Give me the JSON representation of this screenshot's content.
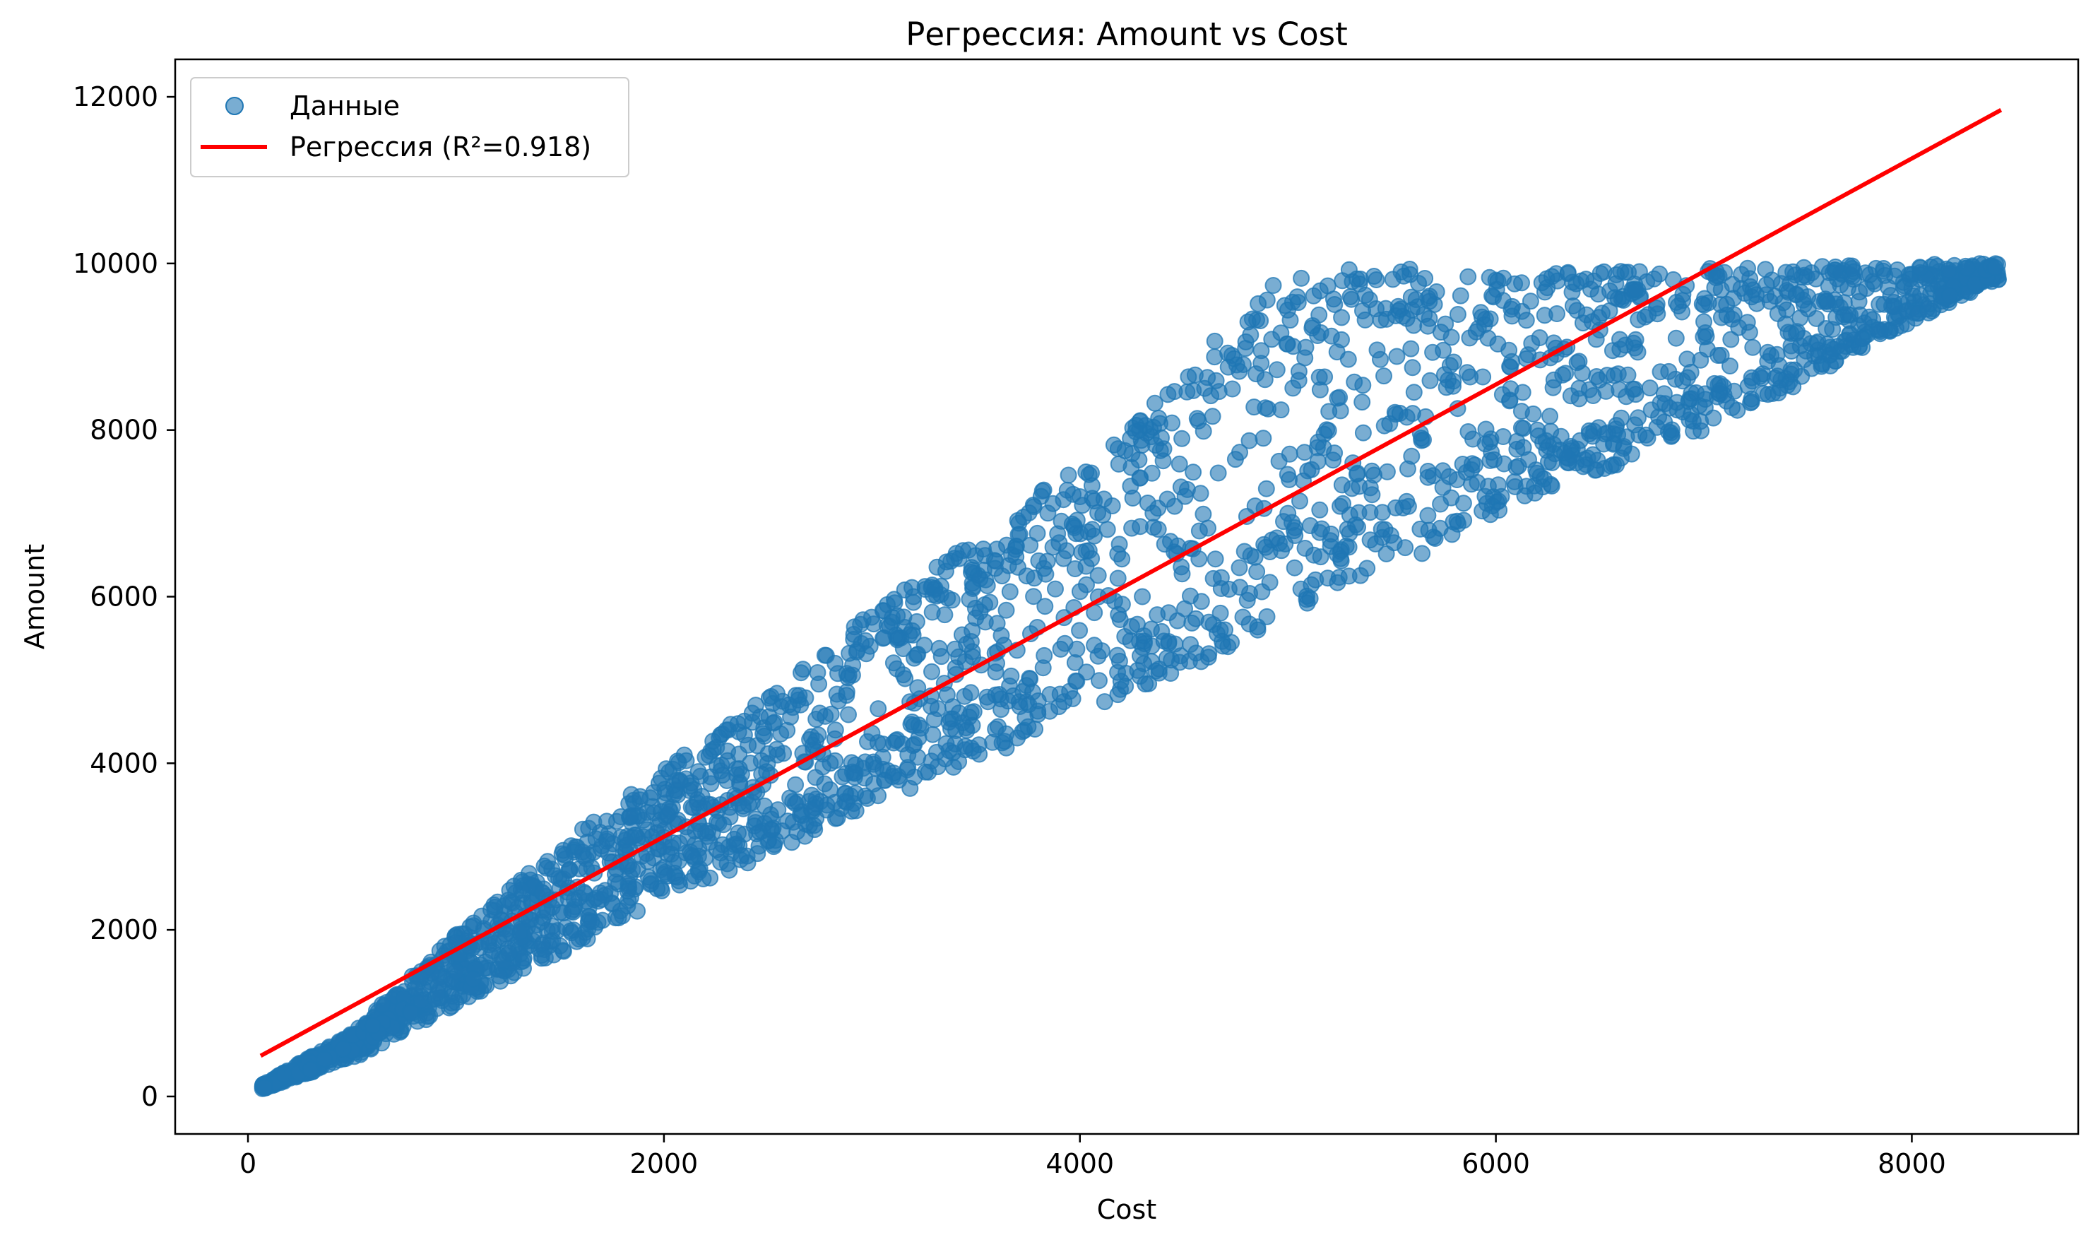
{
  "chart_data": {
    "type": "scatter",
    "title": "Регрессия: Amount vs Cost",
    "xlabel": "Cost",
    "ylabel": "Amount",
    "xlim": [
      -350,
      8800
    ],
    "ylim": [
      -450,
      12450
    ],
    "xticks": [
      0,
      2000,
      4000,
      6000,
      8000
    ],
    "yticks": [
      0,
      2000,
      4000,
      6000,
      8000,
      10000,
      12000
    ],
    "grid": false,
    "legend_position": "top-left",
    "colors": {
      "points": "#1f77b4",
      "regression": "#ff0000",
      "axes": "#000000",
      "legend_border": "#cccccc"
    },
    "series": [
      {
        "name": "Данные",
        "kind": "scatter",
        "point_opacity": 0.6,
        "envelope_upper": [
          [
            70,
            140
          ],
          [
            500,
            760
          ],
          [
            1000,
            1950
          ],
          [
            1500,
            3000
          ],
          [
            2000,
            3950
          ],
          [
            2500,
            4800
          ],
          [
            3000,
            5900
          ],
          [
            3500,
            6700
          ],
          [
            4000,
            7600
          ],
          [
            4500,
            8700
          ],
          [
            4900,
            9800
          ],
          [
            5200,
            9950
          ],
          [
            5800,
            9950
          ],
          [
            6500,
            9900
          ],
          [
            7000,
            9950
          ],
          [
            8400,
            10000
          ]
        ],
        "envelope_lower": [
          [
            70,
            90
          ],
          [
            500,
            450
          ],
          [
            1000,
            1100
          ],
          [
            1500,
            1700
          ],
          [
            2000,
            2400
          ],
          [
            2500,
            2900
          ],
          [
            3000,
            3500
          ],
          [
            3500,
            4000
          ],
          [
            4000,
            4600
          ],
          [
            4500,
            5100
          ],
          [
            5000,
            5800
          ],
          [
            5500,
            6300
          ],
          [
            6000,
            7000
          ],
          [
            6500,
            7500
          ],
          [
            7000,
            8000
          ],
          [
            7500,
            8600
          ],
          [
            8000,
            9300
          ],
          [
            8400,
            9800
          ]
        ],
        "points": [
          [
            80,
            110
          ],
          [
            300,
            320
          ],
          [
            600,
            850
          ],
          [
            1000,
            1500
          ],
          [
            1500,
            2500
          ],
          [
            2000,
            3000
          ],
          [
            2300,
            4400
          ],
          [
            2800,
            4000
          ],
          [
            3200,
            6000
          ],
          [
            3600,
            5200
          ],
          [
            4000,
            7200
          ],
          [
            4300,
            6000
          ],
          [
            4600,
            8500
          ],
          [
            5000,
            7000
          ],
          [
            5300,
            9600
          ],
          [
            5600,
            8200
          ],
          [
            6000,
            9800
          ],
          [
            6200,
            8000
          ],
          [
            6500,
            9200
          ],
          [
            7000,
            9300
          ],
          [
            7500,
            9600
          ],
          [
            8000,
            9700
          ],
          [
            8400,
            9950
          ]
        ]
      },
      {
        "name": "Регрессия (R²=0.918)",
        "kind": "line",
        "x": [
          70,
          8420
        ],
        "y": [
          500,
          11830
        ]
      }
    ]
  }
}
